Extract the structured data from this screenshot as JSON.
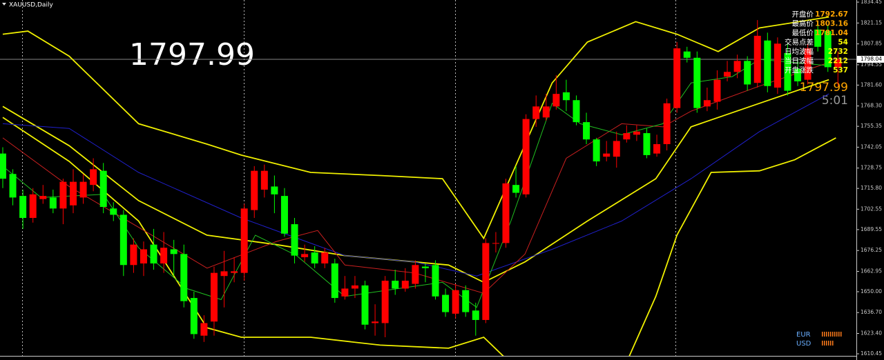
{
  "chart_data": {
    "type": "candlestick",
    "title": "XAUUSD,Daily",
    "price": 1797.99,
    "bid_line": 1798.04,
    "timer": "5:01",
    "up_color": "#ff0000",
    "down_color": "#00ff00",
    "candles": {
      "open": [
        1738,
        1725,
        1711,
        1697,
        1709,
        1710,
        1703,
        1705,
        1710,
        1718,
        1727,
        1703,
        1699,
        1667,
        1668,
        1680,
        1668,
        1677,
        1674,
        1646,
        1622,
        1631,
        1660,
        1662,
        1662,
        1702,
        1715,
        1717,
        1711,
        1693,
        1672,
        1675,
        1668,
        1668,
        1647,
        1652,
        1654,
        1630,
        1630,
        1657,
        1652,
        1655,
        1666,
        1667,
        1648,
        1636,
        1651,
        1638,
        1632,
        1681,
        1681,
        1718,
        1712,
        1760,
        1761,
        1768,
        1777,
        1772,
        1758,
        1747,
        1736,
        1736,
        1747,
        1750,
        1751,
        1738,
        1744,
        1767,
        1803,
        1799,
        1768,
        1771,
        1787,
        1790,
        1797,
        1783,
        1810,
        1780,
        1802,
        1792,
        1785,
        1817,
        1816,
        1792.67
      ],
      "high": [
        1742,
        1728,
        1715,
        1716,
        1718,
        1715,
        1722,
        1728,
        1725,
        1735,
        1732,
        1707,
        1702,
        1684,
        1682,
        1690,
        1688,
        1683,
        1680,
        1650,
        1635,
        1666,
        1676,
        1672,
        1706,
        1730,
        1731,
        1724,
        1716,
        1697,
        1680,
        1679,
        1678,
        1671,
        1660,
        1660,
        1657,
        1642,
        1660,
        1664,
        1665,
        1670,
        1668,
        1670,
        1652,
        1655,
        1654,
        1643,
        1684,
        1688,
        1722,
        1730,
        1763,
        1775,
        1776,
        1788,
        1785,
        1775,
        1764,
        1748,
        1746,
        1752,
        1756,
        1756,
        1754,
        1750,
        1773,
        1809,
        1806,
        1803,
        1780,
        1791,
        1797,
        1801,
        1800,
        1823,
        1815,
        1812,
        1808,
        1798,
        1808,
        1822,
        1820,
        1803.16
      ],
      "low": [
        1716,
        1705,
        1690,
        1694,
        1706,
        1700,
        1693,
        1700,
        1706,
        1714,
        1700,
        1695,
        1660,
        1662,
        1660,
        1664,
        1662,
        1660,
        1640,
        1620,
        1618,
        1622,
        1640,
        1656,
        1657,
        1697,
        1710,
        1700,
        1685,
        1668,
        1669,
        1665,
        1665,
        1643,
        1645,
        1646,
        1626,
        1622,
        1621,
        1648,
        1650,
        1652,
        1656,
        1645,
        1634,
        1633,
        1634,
        1622,
        1630,
        1675,
        1678,
        1710,
        1710,
        1755,
        1759,
        1766,
        1765,
        1756,
        1744,
        1730,
        1733,
        1729,
        1745,
        1746,
        1735,
        1736,
        1740,
        1764,
        1796,
        1764,
        1765,
        1766,
        1784,
        1786,
        1778,
        1780,
        1777,
        1776,
        1775,
        1781,
        1782,
        1803,
        1790,
        1781.04
      ],
      "close": [
        1722,
        1710,
        1697,
        1712,
        1711,
        1703,
        1720,
        1720,
        1720,
        1728,
        1704,
        1699,
        1667,
        1680,
        1677,
        1668,
        1678,
        1674,
        1644,
        1623,
        1630,
        1662,
        1663,
        1663,
        1703,
        1727,
        1727,
        1712,
        1687,
        1673,
        1674,
        1668,
        1675,
        1646,
        1652,
        1654,
        1629,
        1631,
        1657,
        1652,
        1657,
        1667,
        1665,
        1647,
        1637,
        1651,
        1637,
        1632,
        1681,
        1681,
        1719,
        1713,
        1760,
        1768,
        1768,
        1776,
        1772,
        1758,
        1747,
        1733,
        1738,
        1746,
        1751,
        1752,
        1737,
        1744,
        1770,
        1805,
        1799,
        1767,
        1772,
        1785,
        1790,
        1797,
        1782,
        1813,
        1781,
        1808,
        1778,
        1784,
        1805,
        1806,
        1793,
        1797.99
      ]
    },
    "series": [
      {
        "color": "#f0f000",
        "x": [
          0,
          2.5,
          6.6,
          13.5,
          20.3,
          23.7,
          30.6,
          37.5,
          43.7,
          47.8,
          54.6,
          58.1,
          62.9,
          67,
          71.1,
          75.2,
          82.1
        ],
        "values": [
          1814,
          1816,
          1800,
          1757,
          1744,
          1737,
          1726,
          1724,
          1722,
          1684,
          1783,
          1809,
          1822,
          1814,
          1803,
          1818,
          1825
        ]
      },
      {
        "color": "#f0f000",
        "x": [
          0,
          6.6,
          13.5,
          20.3,
          27.2,
          34,
          40.9,
          44.3,
          47.8,
          51.9,
          58.1,
          64.9,
          68.4,
          75.2,
          82.1
        ],
        "values": [
          1768,
          1743,
          1708,
          1686,
          1680,
          1673,
          1669,
          1667,
          1656,
          1669,
          1695,
          1722,
          1755,
          1770,
          1785
        ]
      },
      {
        "color": "#f0f000",
        "x": [
          0,
          6.6,
          13.5,
          20.3,
          23.7,
          30.6,
          37.5,
          44.3,
          47.8,
          51.2,
          61.5,
          64.9,
          67,
          70.4,
          75.2,
          78.7,
          82.8
        ],
        "values": [
          1761,
          1733,
          1695,
          1627,
          1621,
          1621,
          1616,
          1614,
          1621,
          1600,
          1598,
          1647,
          1686,
          1726,
          1727,
          1734,
          1748
        ]
      },
      {
        "color": "#2020cc",
        "x": [
          0,
          6.6,
          13.5,
          23.7,
          34,
          40.9,
          47.1,
          54.6,
          61.5,
          68.4,
          75.2,
          82.1
        ],
        "values": [
          1757,
          1754,
          1726,
          1697,
          1673,
          1669,
          1660,
          1677,
          1695,
          1722,
          1752,
          1776
        ]
      },
      {
        "color": "#cc2020",
        "x": [
          0,
          6.6,
          13.5,
          20.3,
          27.2,
          31.3,
          34,
          40.9,
          47.8,
          51.9,
          56,
          61.5,
          65.6,
          68.4,
          75.2,
          82.1
        ],
        "values": [
          1748,
          1717,
          1691,
          1665,
          1682,
          1689,
          1667,
          1662,
          1649,
          1674,
          1735,
          1757,
          1755,
          1765,
          1781,
          1796
        ]
      },
      {
        "color": "#20c020",
        "x": [
          0,
          3.8,
          10,
          13.5,
          18.3,
          21.7,
          25.1,
          29.2,
          34,
          38.2,
          43.7,
          47.1,
          50.5,
          54.6,
          57.4,
          61.5,
          65.6,
          68.4,
          72.5,
          75.2,
          82.1
        ],
        "values": [
          1730,
          1710,
          1712,
          1678,
          1652,
          1645,
          1686,
          1673,
          1647,
          1651,
          1656,
          1640,
          1695,
          1770,
          1757,
          1750,
          1757,
          1783,
          1787,
          1798,
          1794
        ]
      }
    ],
    "ylim": [
      1606.5,
      1835.8
    ],
    "yticks": [
      1834.45,
      1821.15,
      1807.85,
      1794.55,
      {
        "value": 1781.6,
        "label": "1781.60"
      },
      {
        "value": 1768.3,
        "label": "1768.30"
      },
      1755.35,
      1742.05,
      1728.75,
      {
        "value": 1715.8,
        "label": "1715.80"
      },
      1702.55,
      1689.55,
      1676.25,
      1662.95,
      {
        "value": 1650,
        "label": "1650.00"
      },
      {
        "value": 1636.7,
        "label": "1636.70"
      },
      {
        "value": 1623.4,
        "label": "1623.40"
      },
      1610.45
    ],
    "info": [
      {
        "label": "开盘价",
        "value": 1792.67,
        "color": "#ffa500"
      },
      {
        "label": "最高价",
        "value": 1803.16,
        "color": "#ffa500"
      },
      {
        "label": "最低价",
        "value": 1781.04,
        "color": "#ffa500"
      },
      {
        "label": "交易点差",
        "value": 54,
        "color": "#ffff00"
      },
      {
        "label": "日均波幅",
        "value": 2732,
        "color": "#ffff00"
      },
      {
        "label": "当日波幅",
        "value": 2212,
        "color": "#ffff00"
      },
      {
        "label": "开盘涨跌",
        "value": 537,
        "color": "#ffff00"
      }
    ],
    "symbols": [
      "EUR",
      "USD"
    ]
  }
}
